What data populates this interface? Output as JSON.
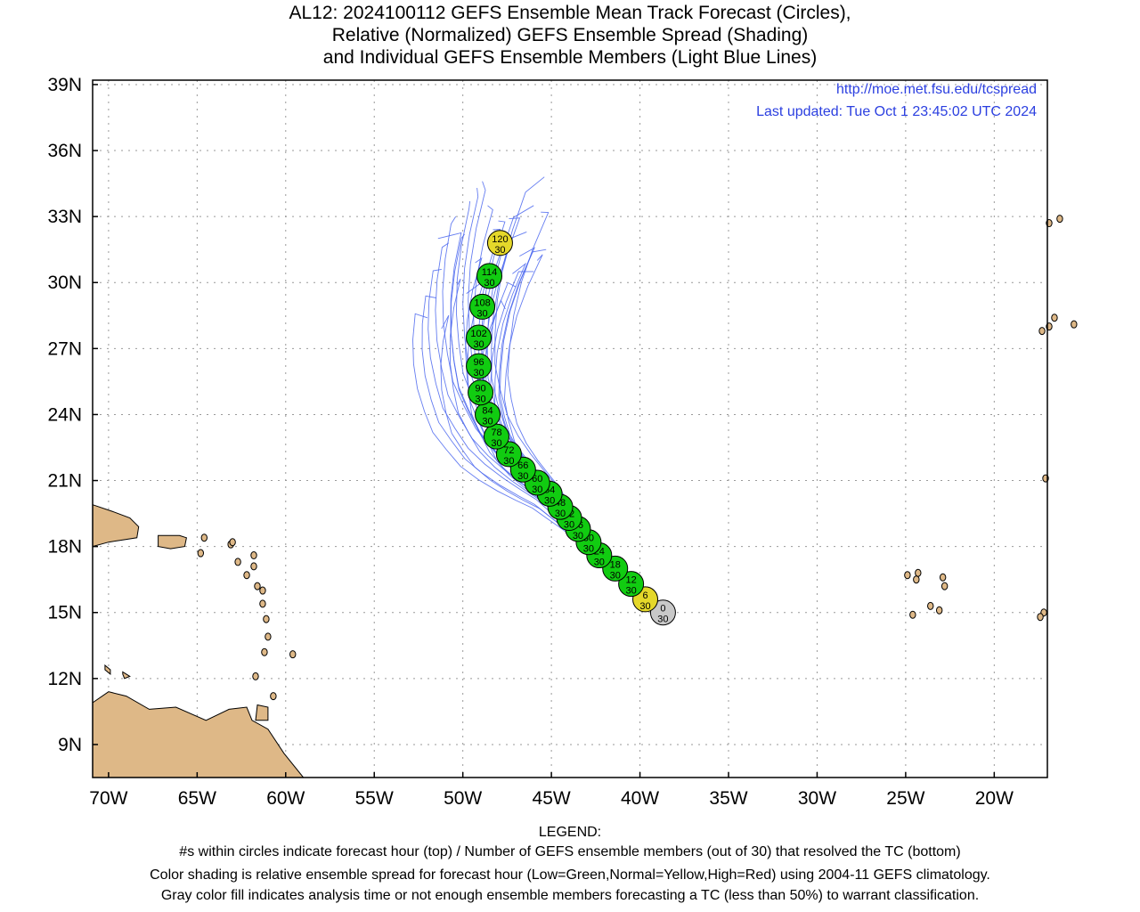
{
  "title": {
    "line1": "AL12: 2024100112 GEFS Ensemble Mean Track Forecast (Circles),",
    "line2": "Relative (Normalized) GEFS Ensemble Spread (Shading)",
    "line3": "and Individual GEFS Ensemble Members (Light Blue Lines)"
  },
  "notes": {
    "url": "http://moe.met.fsu.edu/tcspread",
    "updated": "Last updated: Tue Oct 1 23:45:02 UTC 2024"
  },
  "axes": {
    "lat_labels": [
      "39N",
      "36N",
      "33N",
      "30N",
      "27N",
      "24N",
      "21N",
      "18N",
      "15N",
      "12N",
      "9N"
    ],
    "lat_values": [
      39,
      36,
      33,
      30,
      27,
      24,
      21,
      18,
      15,
      12,
      9
    ],
    "lon_labels": [
      "70W",
      "65W",
      "60W",
      "55W",
      "50W",
      "45W",
      "40W",
      "35W",
      "30W",
      "25W",
      "20W"
    ],
    "lon_values": [
      -70,
      -65,
      -60,
      -55,
      -50,
      -45,
      -40,
      -35,
      -30,
      -25,
      -20
    ],
    "lat_range": [
      7.5,
      39.2
    ],
    "lon_range": [
      -70.9,
      -17.0
    ]
  },
  "colors": {
    "low_spread": "#11cc11",
    "normal_spread": "#e5d82a",
    "analysis": "#c8c8c8",
    "member_track": "#4a66ee",
    "land": "#deb887"
  },
  "mean_track": [
    {
      "hour": "0",
      "members": "30",
      "lat": 15.0,
      "lon": -38.7,
      "shade": "analysis"
    },
    {
      "hour": "6",
      "members": "30",
      "lat": 15.6,
      "lon": -39.7,
      "shade": "normal_spread"
    },
    {
      "hour": "12",
      "members": "30",
      "lat": 16.3,
      "lon": -40.5,
      "shade": "low_spread"
    },
    {
      "hour": "18",
      "members": "30",
      "lat": 17.0,
      "lon": -41.4,
      "shade": "low_spread"
    },
    {
      "hour": "24",
      "members": "30",
      "lat": 17.6,
      "lon": -42.3,
      "shade": "low_spread"
    },
    {
      "hour": "30",
      "members": "30",
      "lat": 18.2,
      "lon": -42.9,
      "shade": "low_spread"
    },
    {
      "hour": "36",
      "members": "30",
      "lat": 18.8,
      "lon": -43.5,
      "shade": "low_spread"
    },
    {
      "hour": "42",
      "members": "30",
      "lat": 19.3,
      "lon": -44.0,
      "shade": "low_spread"
    },
    {
      "hour": "48",
      "members": "30",
      "lat": 19.8,
      "lon": -44.5,
      "shade": "low_spread"
    },
    {
      "hour": "54",
      "members": "30",
      "lat": 20.4,
      "lon": -45.1,
      "shade": "low_spread"
    },
    {
      "hour": "60",
      "members": "30",
      "lat": 20.9,
      "lon": -45.8,
      "shade": "low_spread"
    },
    {
      "hour": "66",
      "members": "30",
      "lat": 21.5,
      "lon": -46.6,
      "shade": "low_spread"
    },
    {
      "hour": "72",
      "members": "30",
      "lat": 22.2,
      "lon": -47.4,
      "shade": "low_spread"
    },
    {
      "hour": "78",
      "members": "30",
      "lat": 23.0,
      "lon": -48.1,
      "shade": "low_spread"
    },
    {
      "hour": "84",
      "members": "30",
      "lat": 24.0,
      "lon": -48.6,
      "shade": "low_spread"
    },
    {
      "hour": "90",
      "members": "30",
      "lat": 25.0,
      "lon": -49.0,
      "shade": "low_spread"
    },
    {
      "hour": "96",
      "members": "30",
      "lat": 26.2,
      "lon": -49.1,
      "shade": "low_spread"
    },
    {
      "hour": "102",
      "members": "30",
      "lat": 27.5,
      "lon": -49.1,
      "shade": "low_spread"
    },
    {
      "hour": "108",
      "members": "30",
      "lat": 28.9,
      "lon": -48.9,
      "shade": "low_spread"
    },
    {
      "hour": "114",
      "members": "30",
      "lat": 30.3,
      "lon": -48.5,
      "shade": "low_spread"
    },
    {
      "hour": "120",
      "members": "30",
      "lat": 31.8,
      "lon": -47.9,
      "shade": "normal_spread"
    }
  ],
  "member_endpoints": [
    [
      28.4,
      -52.0
    ],
    [
      29.3,
      -51.5
    ],
    [
      30.6,
      -51.2
    ],
    [
      31.8,
      -50.8
    ],
    [
      33.0,
      -50.4
    ],
    [
      32.2,
      -49.9
    ],
    [
      33.7,
      -49.6
    ],
    [
      34.3,
      -49.2
    ],
    [
      34.6,
      -48.9
    ],
    [
      33.5,
      -48.6
    ],
    [
      32.4,
      -48.3
    ],
    [
      31.6,
      -47.8
    ],
    [
      32.9,
      -47.4
    ],
    [
      30.4,
      -47.2
    ],
    [
      31.2,
      -46.8
    ],
    [
      32.3,
      -46.4
    ],
    [
      33.5,
      -46.0
    ],
    [
      34.8,
      -45.4
    ],
    [
      30.5,
      -46.0
    ],
    [
      31.5,
      -45.3
    ],
    [
      29.8,
      -47.0
    ],
    [
      28.8,
      -47.6
    ],
    [
      29.9,
      -50.3
    ],
    [
      27.9,
      -51.2
    ],
    [
      30.9,
      -49.3
    ],
    [
      32.8,
      -48.0
    ],
    [
      31.0,
      -45.8
    ],
    [
      33.2,
      -45.6
    ],
    [
      29.5,
      -49.8
    ],
    [
      32.0,
      -51.4
    ]
  ],
  "legend": {
    "heading": "LEGEND:",
    "line1": "#s within circles indicate forecast hour (top) / Number of GEFS ensemble members (out of 30) that resolved the TC (bottom)",
    "line2": "Color shading is relative ensemble spread for forecast hour (Low=Green,Normal=Yellow,High=Red) using 2004-11 GEFS climatology.",
    "line3": "Gray color fill indicates analysis time or not enough ensemble members forecasting a TC (less than 50%) to warrant classification."
  }
}
